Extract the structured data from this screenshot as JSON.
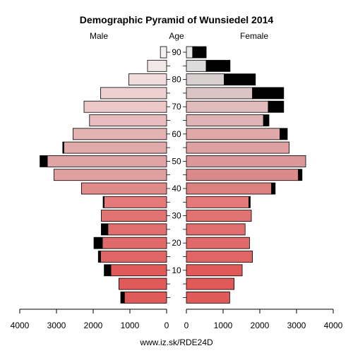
{
  "chart_data": {
    "type": "bar",
    "title": "Demographic Pyramid of Wunsiedel 2014",
    "left_label": "Male",
    "center_label": "Age",
    "right_label": "Female",
    "footer": "www.iz.sk/RDE24D",
    "age_groups": [
      "0-4",
      "5-9",
      "10-14",
      "15-19",
      "20-24",
      "25-29",
      "30-34",
      "35-39",
      "40-44",
      "45-49",
      "50-54",
      "55-59",
      "60-64",
      "65-69",
      "70-74",
      "75-79",
      "80-84",
      "85-89",
      "90+"
    ],
    "age_ticks": [
      "10",
      "20",
      "30",
      "40",
      "50",
      "60",
      "70",
      "80",
      "90"
    ],
    "x_ticks": [
      "4000",
      "3000",
      "2000",
      "1000",
      "0",
      "0",
      "1000",
      "2000",
      "3000",
      "4000"
    ],
    "xlim": [
      0,
      4000
    ],
    "series": [
      {
        "name": "Male",
        "values": [
          1150,
          1300,
          1520,
          1800,
          1750,
          1600,
          1780,
          1700,
          2320,
          3070,
          3250,
          2800,
          2550,
          2100,
          2250,
          1800,
          1030,
          520,
          170
        ]
      },
      {
        "name": "Male excess",
        "values": [
          100,
          0,
          180,
          60,
          230,
          180,
          0,
          30,
          0,
          0,
          200,
          30,
          0,
          0,
          0,
          0,
          0,
          0,
          0
        ]
      },
      {
        "name": "Female",
        "values": [
          1180,
          1300,
          1520,
          1800,
          1720,
          1600,
          1770,
          1700,
          2320,
          3050,
          3250,
          2800,
          2550,
          2100,
          2230,
          1800,
          1030,
          540,
          170
        ]
      },
      {
        "name": "Female excess",
        "values": [
          0,
          0,
          0,
          0,
          0,
          0,
          0,
          40,
          100,
          100,
          0,
          0,
          200,
          150,
          420,
          850,
          850,
          650,
          370
        ]
      }
    ],
    "colors": {
      "female_base": [
        "#e05a5a",
        "#e05a5a",
        "#e05a5a",
        "#e06666",
        "#e06a6a",
        "#e06e6e",
        "#e07272",
        "#e57878",
        "#dc8080",
        "#da8a8a",
        "#dc9898",
        "#dea0a0",
        "#e0a8a8",
        "#e0b4b4",
        "#e0bcbc",
        "#dcc4c4",
        "#d8d0d0",
        "#dcdcdc",
        "#e8e8e8"
      ],
      "male_base": [
        "#e05a5a",
        "#e05a5a",
        "#e05a5a",
        "#e06666",
        "#e06a6a",
        "#e06e6e",
        "#e07272",
        "#e57878",
        "#e08a8a",
        "#e0a0a0",
        "#e0a4a4",
        "#e0aaaa",
        "#e4b2b2",
        "#e8bcbc",
        "#ecc8c8",
        "#eed0d0",
        "#f0dcdc",
        "#f2e8e8",
        "#f4f0f0"
      ],
      "excess": "#000000"
    }
  }
}
